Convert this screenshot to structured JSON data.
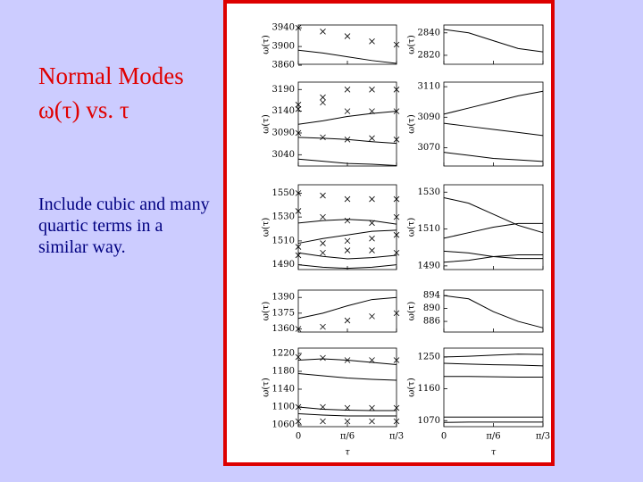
{
  "slide": {
    "title": "Normal Modes",
    "subtitle": "ω(τ) vs. τ",
    "body": "Include cubic and many quartic terms in a similar way."
  },
  "figure": {
    "xlabel": "τ",
    "ylabel": "ω(τ)",
    "x": [
      0,
      0.2618,
      0.5236,
      0.7854,
      1.0472
    ],
    "xlim": [
      0,
      1.0472
    ],
    "xticks": [
      0,
      {
        "value": 0.5236,
        "label": "π/6"
      },
      {
        "value": 1.0472,
        "label": "π/3"
      }
    ],
    "panels": [
      {
        "ylim": [
          3862,
          3946
        ],
        "yticks": [
          3860,
          3900,
          3940
        ],
        "lines": [
          [
            3892,
            3886,
            3878,
            3870,
            3864
          ]
        ],
        "crosses": [
          [
            3940,
            3932,
            3922,
            3911,
            3904
          ]
        ]
      },
      {
        "ylim": [
          2812,
          2847
        ],
        "yticks": [
          2820,
          2840
        ],
        "lines": [
          [
            2843,
            2840,
            2833,
            2826,
            2823
          ]
        ],
        "crosses": []
      },
      {
        "ylim": [
          3014,
          3207
        ],
        "yticks": [
          3040,
          3090,
          3140,
          3190
        ],
        "lines": [
          [
            3110,
            3118,
            3128,
            3135,
            3140
          ],
          [
            3080,
            3078,
            3075,
            3070,
            3066
          ],
          [
            3030,
            3025,
            3020,
            3018,
            3015
          ]
        ],
        "crosses": [
          [
            3155,
            3172,
            3190,
            3190,
            3190
          ],
          [
            3145,
            3160,
            3140,
            3140,
            3140
          ],
          [
            3090,
            3080,
            3075,
            3078,
            3075
          ]
        ]
      },
      {
        "ylim": [
          3058,
          3113
        ],
        "yticks": [
          3070,
          3090,
          3110
        ],
        "lines": [
          [
            3092,
            3096,
            3100,
            3104,
            3107
          ],
          [
            3086,
            3084,
            3082,
            3080,
            3078
          ],
          [
            3067,
            3065,
            3063,
            3062,
            3061
          ]
        ],
        "crosses": []
      },
      {
        "ylim": [
          1486,
          1557
        ],
        "yticks": [
          1490,
          1510,
          1530,
          1550
        ],
        "lines": [
          [
            1525,
            1527,
            1528,
            1527,
            1524
          ],
          [
            1508,
            1512,
            1515,
            1518,
            1519
          ],
          [
            1500,
            1497,
            1495,
            1496,
            1498
          ],
          [
            1490,
            1488,
            1487,
            1488,
            1490
          ]
        ],
        "crosses": [
          [
            1550,
            1548,
            1545,
            1545,
            1545
          ],
          [
            1535,
            1530,
            1527,
            1525,
            1530
          ],
          [
            1505,
            1508,
            1510,
            1512,
            1515
          ],
          [
            1498,
            1500,
            1502,
            1502,
            1500
          ]
        ]
      },
      {
        "ylim": [
          1488,
          1534
        ],
        "yticks": [
          1490,
          1510,
          1530
        ],
        "lines": [
          [
            1527,
            1524,
            1518,
            1512,
            1508
          ],
          [
            1505,
            1508,
            1511,
            1513,
            1513
          ],
          [
            1498,
            1497,
            1495,
            1494,
            1494
          ],
          [
            1492,
            1493,
            1495,
            1496,
            1496
          ]
        ],
        "crosses": []
      },
      {
        "ylim": [
          1357,
          1397
        ],
        "yticks": [
          1360,
          1375,
          1390
        ],
        "lines": [
          [
            1370,
            1375,
            1382,
            1388,
            1390
          ]
        ],
        "crosses": [
          [
            1360,
            1362,
            1368,
            1372,
            1375
          ]
        ]
      },
      {
        "ylim": [
          882.7,
          895.7
        ],
        "yticks": [
          886,
          890,
          894
        ],
        "lines": [
          [
            894,
            893,
            889,
            886,
            884
          ]
        ],
        "crosses": []
      },
      {
        "ylim": [
          1056,
          1232
        ],
        "yticks": [
          1060,
          1100,
          1140,
          1180,
          1220
        ],
        "lines": [
          [
            1205,
            1208,
            1205,
            1200,
            1195
          ],
          [
            1175,
            1170,
            1165,
            1162,
            1160
          ],
          [
            1100,
            1095,
            1093,
            1092,
            1092
          ],
          [
            1085,
            1082,
            1080,
            1080,
            1080
          ]
        ],
        "crosses": [
          [
            1212,
            1210,
            1205,
            1205,
            1205
          ],
          [
            1100,
            1100,
            1098,
            1098,
            1098
          ],
          [
            1068,
            1068,
            1068,
            1068,
            1068
          ]
        ]
      },
      {
        "ylim": [
          1053,
          1275
        ],
        "yticks": [
          1070,
          1160,
          1250
        ],
        "lines": [
          [
            1250,
            1252,
            1255,
            1258,
            1257
          ],
          [
            1232,
            1230,
            1228,
            1227,
            1225
          ],
          [
            1195,
            1195,
            1194,
            1193,
            1193
          ],
          [
            1080,
            1080,
            1080,
            1080,
            1080
          ],
          [
            1065,
            1066,
            1066,
            1066,
            1066
          ]
        ],
        "crosses": []
      }
    ]
  }
}
